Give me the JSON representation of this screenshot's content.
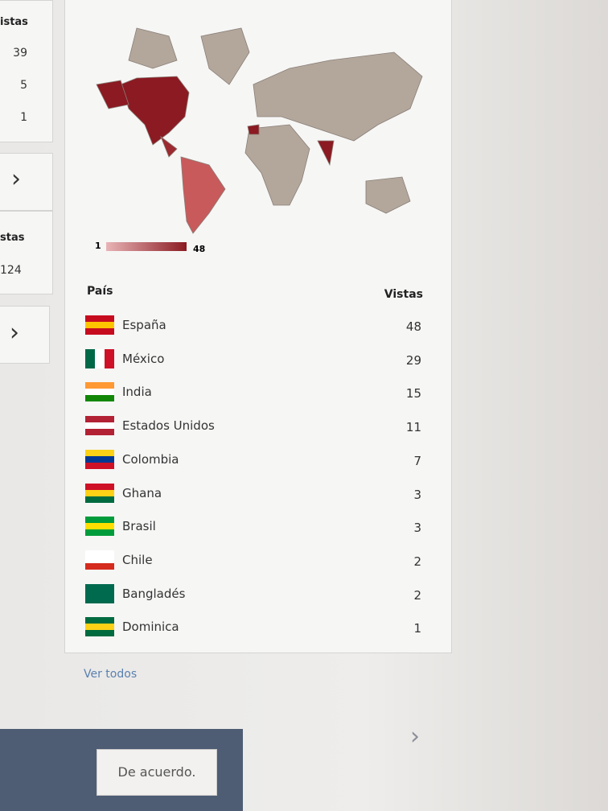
{
  "left_panel": {
    "card1": {
      "header": "istas",
      "rows": [
        "39",
        "5",
        "1"
      ]
    },
    "card2": {
      "header": "stas",
      "rows": [
        "124"
      ]
    }
  },
  "map": {
    "legend_min": "1",
    "legend_max": "48"
  },
  "table": {
    "header": {
      "country": "País",
      "views": "Vistas"
    },
    "rows": [
      [
        "España",
        "48"
      ],
      [
        "México",
        "29"
      ],
      [
        "India",
        "15"
      ],
      [
        "Estados Unidos",
        "11"
      ],
      [
        "Colombia",
        "7"
      ],
      [
        "Ghana",
        "3"
      ],
      [
        "Brasil",
        "3"
      ],
      [
        "Chile",
        "2"
      ],
      [
        "Bangladés",
        "2"
      ],
      [
        "Dominica",
        "1"
      ]
    ]
  },
  "link": "Ver todos",
  "footer": {
    "button": "De acuerdo."
  }
}
